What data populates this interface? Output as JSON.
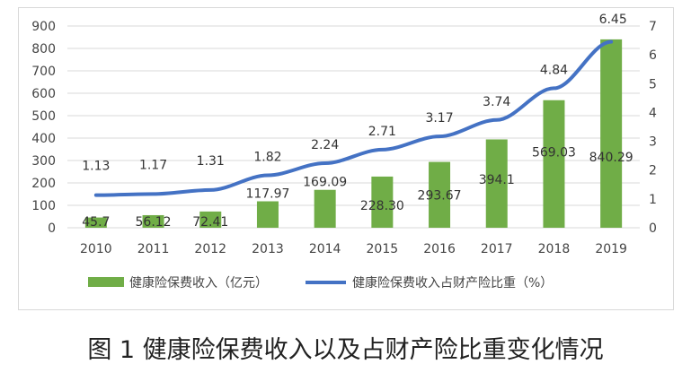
{
  "chart_data": {
    "type": "bar+line",
    "title": "图 1 健康险保费收入以及占财产险比重变化情况",
    "categories": [
      "2010",
      "2011",
      "2012",
      "2013",
      "2014",
      "2015",
      "2016",
      "2017",
      "2018",
      "2019"
    ],
    "series": [
      {
        "name": "健康险保费收入（亿元）",
        "type": "bar",
        "axis": "left",
        "color": "#70ad47",
        "values": [
          45.7,
          56.12,
          72.41,
          117.97,
          169.09,
          228.3,
          293.67,
          394.1,
          569.03,
          840.29
        ],
        "labels": [
          "45.7",
          "56.12",
          "72.41",
          "117.97",
          "169.09",
          "228.30",
          "293.67",
          "394.1",
          "569.03",
          "840.29"
        ]
      },
      {
        "name": "健康险保费收入占财产险比重（%）",
        "type": "line",
        "axis": "right",
        "color": "#4472c4",
        "values": [
          1.13,
          1.17,
          1.31,
          1.82,
          2.24,
          2.71,
          3.17,
          3.74,
          4.84,
          6.45
        ],
        "labels": [
          "1.13",
          "1.17",
          "1.31",
          "1.82",
          "2.24",
          "2.71",
          "3.17",
          "3.74",
          "4.84",
          "6.45"
        ]
      }
    ],
    "left_axis": {
      "ylim": [
        0,
        900
      ],
      "ticks": [
        "0",
        "100",
        "200",
        "300",
        "400",
        "500",
        "600",
        "700",
        "800",
        "900"
      ]
    },
    "right_axis": {
      "ylim": [
        0,
        7
      ],
      "ticks": [
        "0",
        "1",
        "2",
        "3",
        "4",
        "5",
        "6",
        "7"
      ]
    },
    "grid": true,
    "legend": "bottom"
  }
}
